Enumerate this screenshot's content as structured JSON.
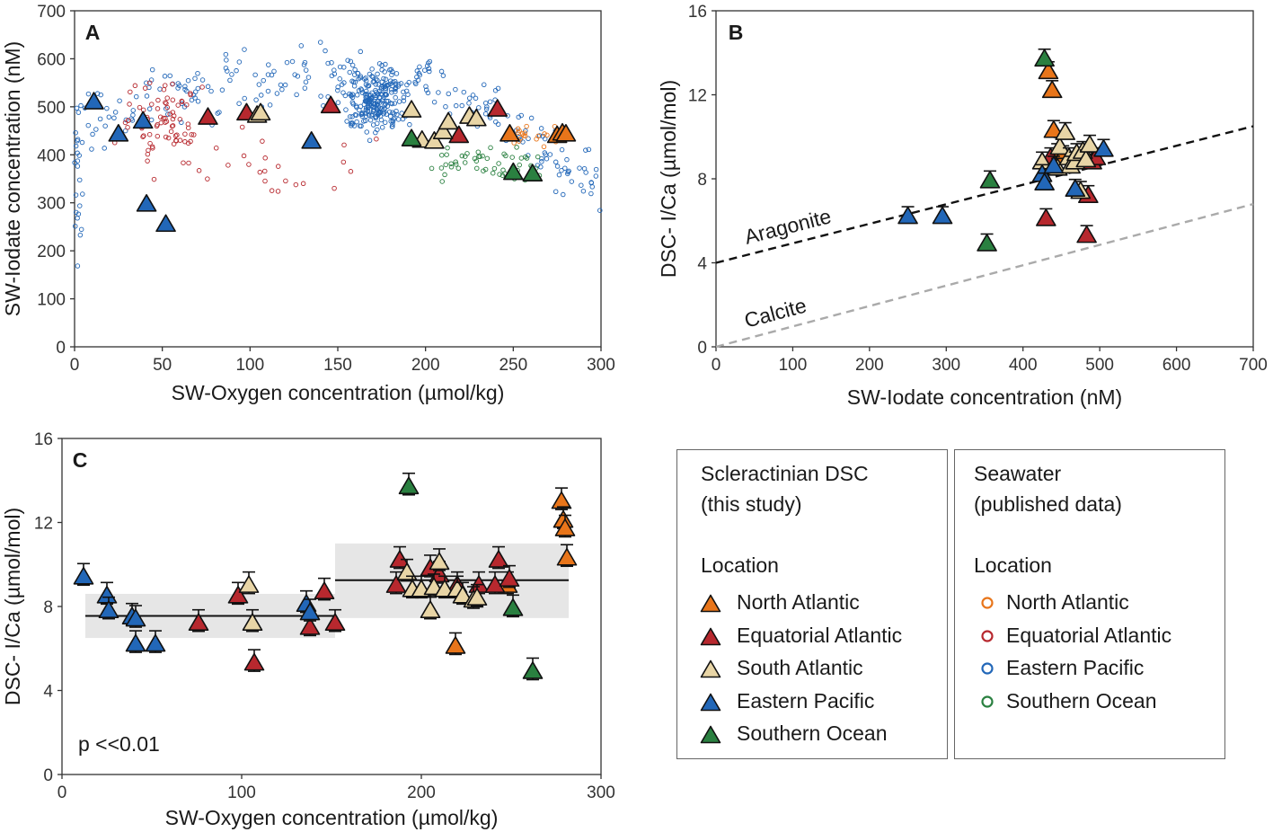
{
  "colors": {
    "north_atlantic": "#e8751a",
    "equatorial_atlantic": "#b7282e",
    "south_atlantic": "#e8d5a6",
    "eastern_pacific": "#2267b8",
    "southern_ocean": "#2a8040",
    "aragonite_line": "#111111",
    "calcite_line": "#aaaaaa",
    "band_fill": "#e6e6e6"
  },
  "chart_data": [
    {
      "panel": "A",
      "type": "scatter",
      "xlabel": "SW-Oxygen concentration (µmol/kg)",
      "ylabel": "SW-Iodate concentration (nM)",
      "xlim": [
        0,
        300
      ],
      "ylim": [
        0,
        700
      ],
      "xticks": [
        "0",
        "50",
        "100",
        "150",
        "200",
        "250",
        "300"
      ],
      "yticks": [
        "0",
        "100",
        "200",
        "300",
        "400",
        "500",
        "600",
        "700"
      ],
      "seawater_note": "Dense cloud of published seawater measurements, colored by location",
      "coral_series": [
        {
          "name": "North Atlantic",
          "color_key": "north_atlantic",
          "points": [
            [
              248,
              443
            ],
            [
              275,
              440
            ],
            [
              278,
              445
            ],
            [
              280,
              443
            ]
          ]
        },
        {
          "name": "Equatorial Atlantic",
          "color_key": "equatorial_atlantic",
          "points": [
            [
              76,
              478
            ],
            [
              98,
              487
            ],
            [
              146,
              502
            ],
            [
              219,
              440
            ],
            [
              241,
              495
            ]
          ]
        },
        {
          "name": "South Atlantic",
          "color_key": "south_atlantic",
          "points": [
            [
              104,
              482
            ],
            [
              106,
              487
            ],
            [
              192,
              493
            ],
            [
              198,
              430
            ],
            [
              205,
              428
            ],
            [
              210,
              448
            ],
            [
              213,
              468
            ],
            [
              225,
              480
            ],
            [
              229,
              475
            ]
          ]
        },
        {
          "name": "Eastern Pacific",
          "color_key": "eastern_pacific",
          "points": [
            [
              11,
              510
            ],
            [
              25,
              443
            ],
            [
              39,
              470
            ],
            [
              41,
              297
            ],
            [
              52,
              255
            ],
            [
              135,
              428
            ]
          ]
        },
        {
          "name": "Southern Ocean",
          "color_key": "southern_ocean",
          "points": [
            [
              192,
              433
            ],
            [
              250,
              363
            ],
            [
              261,
              360
            ]
          ]
        }
      ]
    },
    {
      "panel": "B",
      "type": "scatter",
      "xlabel": "SW-Iodate concentration (nM)",
      "ylabel": "DSC- I/Ca (µmol/mol)",
      "xlim": [
        0,
        700
      ],
      "ylim": [
        0,
        16
      ],
      "xticks": [
        "0",
        "100",
        "200",
        "300",
        "400",
        "500",
        "600",
        "700"
      ],
      "yticks": [
        "0",
        "4",
        "8",
        "12",
        "16"
      ],
      "lines": [
        {
          "label": "Aragonite",
          "style": "dashed",
          "color_key": "aragonite_line",
          "intercept": 4.0,
          "slope": 0.00929
        },
        {
          "label": "Calcite",
          "style": "dashed",
          "color_key": "calcite_line",
          "intercept": 0.0,
          "slope": 0.00971
        }
      ],
      "coral_series": [
        {
          "name": "North Atlantic",
          "color_key": "north_atlantic",
          "points": [
            [
              433,
              13.1
            ],
            [
              438,
              12.2
            ],
            [
              440,
              10.3
            ],
            [
              445,
              9.2
            ],
            [
              452,
              9.1
            ]
          ]
        },
        {
          "name": "Equatorial Atlantic",
          "color_key": "equatorial_atlantic",
          "points": [
            [
              430,
              6.1
            ],
            [
              436,
              9.0
            ],
            [
              483,
              5.3
            ],
            [
              485,
              7.2
            ],
            [
              490,
              8.8
            ],
            [
              495,
              9.0
            ]
          ]
        },
        {
          "name": "South Atlantic",
          "color_key": "south_atlantic",
          "points": [
            [
              425,
              8.8
            ],
            [
              445,
              8.5
            ],
            [
              448,
              9.5
            ],
            [
              455,
              10.2
            ],
            [
              460,
              9.0
            ],
            [
              462,
              8.6
            ],
            [
              468,
              8.8
            ],
            [
              470,
              9.2
            ],
            [
              475,
              7.4
            ],
            [
              478,
              9.3
            ],
            [
              482,
              8.9
            ],
            [
              487,
              9.6
            ]
          ]
        },
        {
          "name": "Eastern Pacific",
          "color_key": "eastern_pacific",
          "points": [
            [
              250,
              6.2
            ],
            [
              295,
              6.2
            ],
            [
              425,
              8.2
            ],
            [
              428,
              7.8
            ],
            [
              440,
              8.6
            ],
            [
              468,
              7.5
            ],
            [
              505,
              9.4
            ]
          ]
        },
        {
          "name": "Southern Ocean",
          "color_key": "southern_ocean",
          "points": [
            [
              357,
              7.9
            ],
            [
              353,
              4.9
            ],
            [
              428,
              13.7
            ]
          ]
        }
      ]
    },
    {
      "panel": "C",
      "type": "scatter",
      "xlabel": "SW-Oxygen concentration (µmol/kg)",
      "ylabel": "DSC- I/Ca (µmol/mol)",
      "xlim": [
        0,
        300
      ],
      "ylim": [
        0,
        16
      ],
      "xticks": [
        "0",
        "100",
        "200",
        "300"
      ],
      "yticks": [
        "0",
        "4",
        "8",
        "12",
        "16"
      ],
      "annotation": "p <<0.01",
      "bands": [
        {
          "x0": 13,
          "x1": 152,
          "mean": 7.55,
          "low": 6.5,
          "high": 8.6
        },
        {
          "x0": 152,
          "x1": 282,
          "mean": 9.25,
          "low": 7.45,
          "high": 11.0
        }
      ],
      "coral_series": [
        {
          "name": "North Atlantic",
          "color_key": "north_atlantic",
          "points": [
            [
              219,
              6.1
            ],
            [
              248,
              9.0
            ],
            [
              278,
              13.0
            ],
            [
              279,
              12.1
            ],
            [
              280,
              11.7
            ],
            [
              281,
              10.3
            ]
          ]
        },
        {
          "name": "Equatorial Atlantic",
          "color_key": "equatorial_atlantic",
          "points": [
            [
              76,
              7.2
            ],
            [
              98,
              8.5
            ],
            [
              107,
              5.3
            ],
            [
              138,
              7.0
            ],
            [
              146,
              8.7
            ],
            [
              152,
              7.2
            ],
            [
              186,
              9.0
            ],
            [
              188,
              10.2
            ],
            [
              205,
              9.8
            ],
            [
              210,
              9.5
            ],
            [
              220,
              9.0
            ],
            [
              232,
              9.0
            ],
            [
              241,
              9.0
            ],
            [
              243,
              10.2
            ],
            [
              249,
              9.3
            ]
          ]
        },
        {
          "name": "South Atlantic",
          "color_key": "south_atlantic",
          "points": [
            [
              104,
              9.0
            ],
            [
              106,
              7.2
            ],
            [
              192,
              9.6
            ],
            [
              195,
              8.8
            ],
            [
              200,
              8.8
            ],
            [
              205,
              7.8
            ],
            [
              207,
              8.9
            ],
            [
              210,
              10.1
            ],
            [
              213,
              8.8
            ],
            [
              220,
              8.8
            ],
            [
              223,
              8.5
            ],
            [
              229,
              8.3
            ],
            [
              231,
              8.4
            ]
          ]
        },
        {
          "name": "Eastern Pacific",
          "color_key": "eastern_pacific",
          "points": [
            [
              12,
              9.4
            ],
            [
              25,
              8.5
            ],
            [
              26,
              7.8
            ],
            [
              39,
              7.5
            ],
            [
              41,
              7.4
            ],
            [
              41,
              6.2
            ],
            [
              52,
              6.2
            ],
            [
              136,
              8.1
            ],
            [
              138,
              7.7
            ]
          ]
        },
        {
          "name": "Southern Ocean",
          "color_key": "southern_ocean",
          "points": [
            [
              193,
              13.7
            ],
            [
              251,
              7.9
            ],
            [
              262,
              4.9
            ]
          ]
        }
      ]
    }
  ],
  "legend": {
    "coral": {
      "title": "Scleractinian DSC",
      "subtitle": "(this study)",
      "location_heading": "Location",
      "items": [
        {
          "label": "North Atlantic",
          "color_key": "north_atlantic"
        },
        {
          "label": "Equatorial Atlantic",
          "color_key": "equatorial_atlantic"
        },
        {
          "label": "South Atlantic",
          "color_key": "south_atlantic"
        },
        {
          "label": "Eastern Pacific",
          "color_key": "eastern_pacific"
        },
        {
          "label": "Southern Ocean",
          "color_key": "southern_ocean"
        }
      ]
    },
    "seawater": {
      "title": "Seawater",
      "subtitle": "(published data)",
      "location_heading": "Location",
      "items": [
        {
          "label": "North Atlantic",
          "color_key": "north_atlantic"
        },
        {
          "label": "Equatorial Atlantic",
          "color_key": "equatorial_atlantic"
        },
        {
          "label": "Eastern Pacific",
          "color_key": "eastern_pacific"
        },
        {
          "label": "Southern Ocean",
          "color_key": "southern_ocean"
        }
      ]
    }
  }
}
